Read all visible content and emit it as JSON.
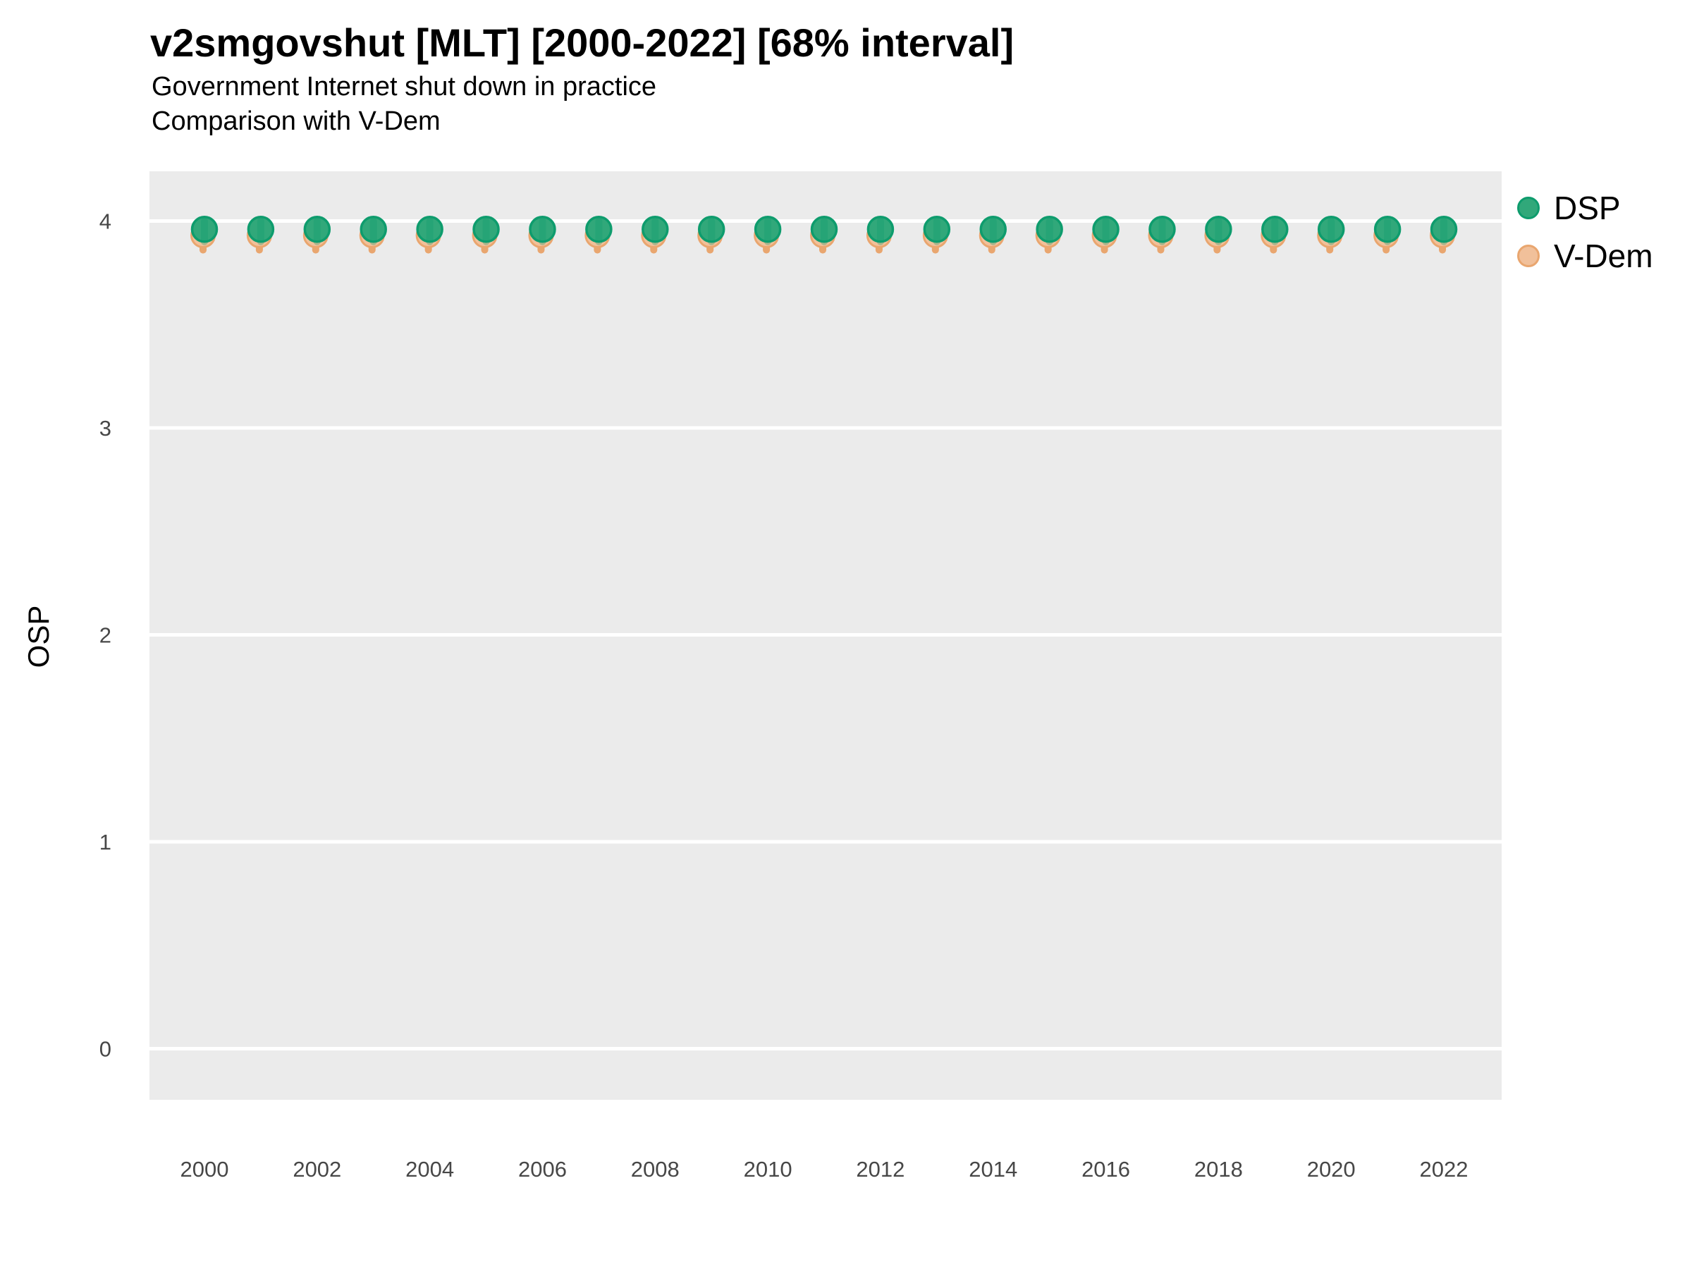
{
  "chart_data": {
    "type": "scatter",
    "title": "v2smgovshut [MLT] [2000-2022] [68% interval]",
    "subtitle1": "Government Internet shut down in practice",
    "subtitle2": "Comparison with V-Dem",
    "xlabel": "",
    "ylabel": "OSP",
    "xlim": [
      1999,
      2023
    ],
    "ylim": [
      -0.25,
      4.25
    ],
    "x_ticks": [
      2000,
      2002,
      2004,
      2006,
      2008,
      2010,
      2012,
      2014,
      2016,
      2018,
      2020,
      2022
    ],
    "y_ticks": [
      0,
      1,
      2,
      3,
      4
    ],
    "grid": "horizontal-major-only",
    "years": [
      2000,
      2001,
      2002,
      2003,
      2004,
      2005,
      2006,
      2007,
      2008,
      2009,
      2010,
      2011,
      2012,
      2013,
      2014,
      2015,
      2016,
      2017,
      2018,
      2019,
      2020,
      2021,
      2022
    ],
    "series": [
      {
        "name": "DSP",
        "values": [
          3.96,
          3.96,
          3.96,
          3.96,
          3.96,
          3.96,
          3.96,
          3.96,
          3.96,
          3.96,
          3.96,
          3.96,
          3.96,
          3.96,
          3.96,
          3.96,
          3.96,
          3.96,
          3.96,
          3.96,
          3.96,
          3.96,
          3.96
        ],
        "interval_low": [
          3.9,
          3.9,
          3.9,
          3.9,
          3.9,
          3.9,
          3.9,
          3.9,
          3.9,
          3.9,
          3.9,
          3.9,
          3.9,
          3.9,
          3.9,
          3.9,
          3.9,
          3.9,
          3.9,
          3.9,
          3.9,
          3.9,
          3.9
        ],
        "interval_high": [
          4.0,
          4.0,
          4.0,
          4.0,
          4.0,
          4.0,
          4.0,
          4.0,
          4.0,
          4.0,
          4.0,
          4.0,
          4.0,
          4.0,
          4.0,
          4.0,
          4.0,
          4.0,
          4.0,
          4.0,
          4.0,
          4.0,
          4.0
        ]
      },
      {
        "name": "V-Dem",
        "values": [
          3.93,
          3.93,
          3.93,
          3.93,
          3.93,
          3.93,
          3.93,
          3.93,
          3.93,
          3.93,
          3.93,
          3.93,
          3.93,
          3.93,
          3.93,
          3.93,
          3.93,
          3.93,
          3.93,
          3.93,
          3.93,
          3.93,
          3.93
        ],
        "interval_low": [
          3.86,
          3.86,
          3.86,
          3.86,
          3.86,
          3.86,
          3.86,
          3.86,
          3.86,
          3.86,
          3.86,
          3.86,
          3.86,
          3.86,
          3.86,
          3.86,
          3.86,
          3.86,
          3.86,
          3.86,
          3.86,
          3.86,
          3.86
        ],
        "interval_high": [
          3.99,
          3.99,
          3.99,
          3.99,
          3.99,
          3.99,
          3.99,
          3.99,
          3.99,
          3.99,
          3.99,
          3.99,
          3.99,
          3.99,
          3.99,
          3.99,
          3.99,
          3.99,
          3.99,
          3.99,
          3.99,
          3.99,
          3.99
        ]
      }
    ],
    "legend": {
      "position": "right",
      "entries": [
        {
          "label": "DSP",
          "fill": "#31A87A",
          "stroke": "#0E9C6D"
        },
        {
          "label": "V-Dem",
          "fill": "#F1C09A",
          "stroke": "#E9A66F"
        }
      ]
    },
    "colors": {
      "panel_bg": "#EBEBEB",
      "grid": "#FFFFFF",
      "dsp_fill": "#31A87A",
      "dsp_stroke": "#0E9C6D",
      "vdem_fill": "#F1C09A",
      "vdem_stroke": "#E9A66F",
      "tick_text": "#474747",
      "title_text": "#000000"
    }
  }
}
